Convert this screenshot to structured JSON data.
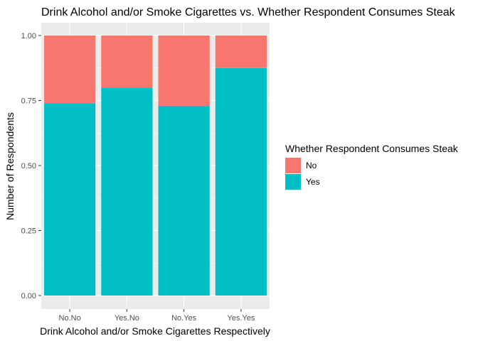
{
  "chart_data": {
    "type": "bar",
    "stacked": true,
    "title": "Drink Alcohol and/or Smoke Cigarettes vs. Whether Respondent Consumes Steak",
    "xlabel": "Drink Alcohol and/or Smoke Cigarettes Respectively",
    "ylabel": "Number of Respondents",
    "categories": [
      "No.No",
      "Yes.No",
      "No.Yes",
      "Yes.Yes"
    ],
    "ylim": [
      0,
      1
    ],
    "yticks": [
      "0.00",
      "0.25",
      "0.50",
      "0.75",
      "1.00"
    ],
    "series": [
      {
        "name": "Yes",
        "color": "#00BFC4",
        "values": [
          0.74,
          0.8,
          0.73,
          0.875
        ]
      },
      {
        "name": "No",
        "color": "#F8766D",
        "values": [
          0.26,
          0.2,
          0.27,
          0.125
        ]
      }
    ],
    "legend": {
      "title": "Whether Respondent Consumes Steak",
      "position": "right",
      "items": [
        {
          "label": "No",
          "color": "#F8766D"
        },
        {
          "label": "Yes",
          "color": "#00BFC4"
        }
      ]
    },
    "grid": true,
    "panel_background": "#EBEBEB"
  }
}
